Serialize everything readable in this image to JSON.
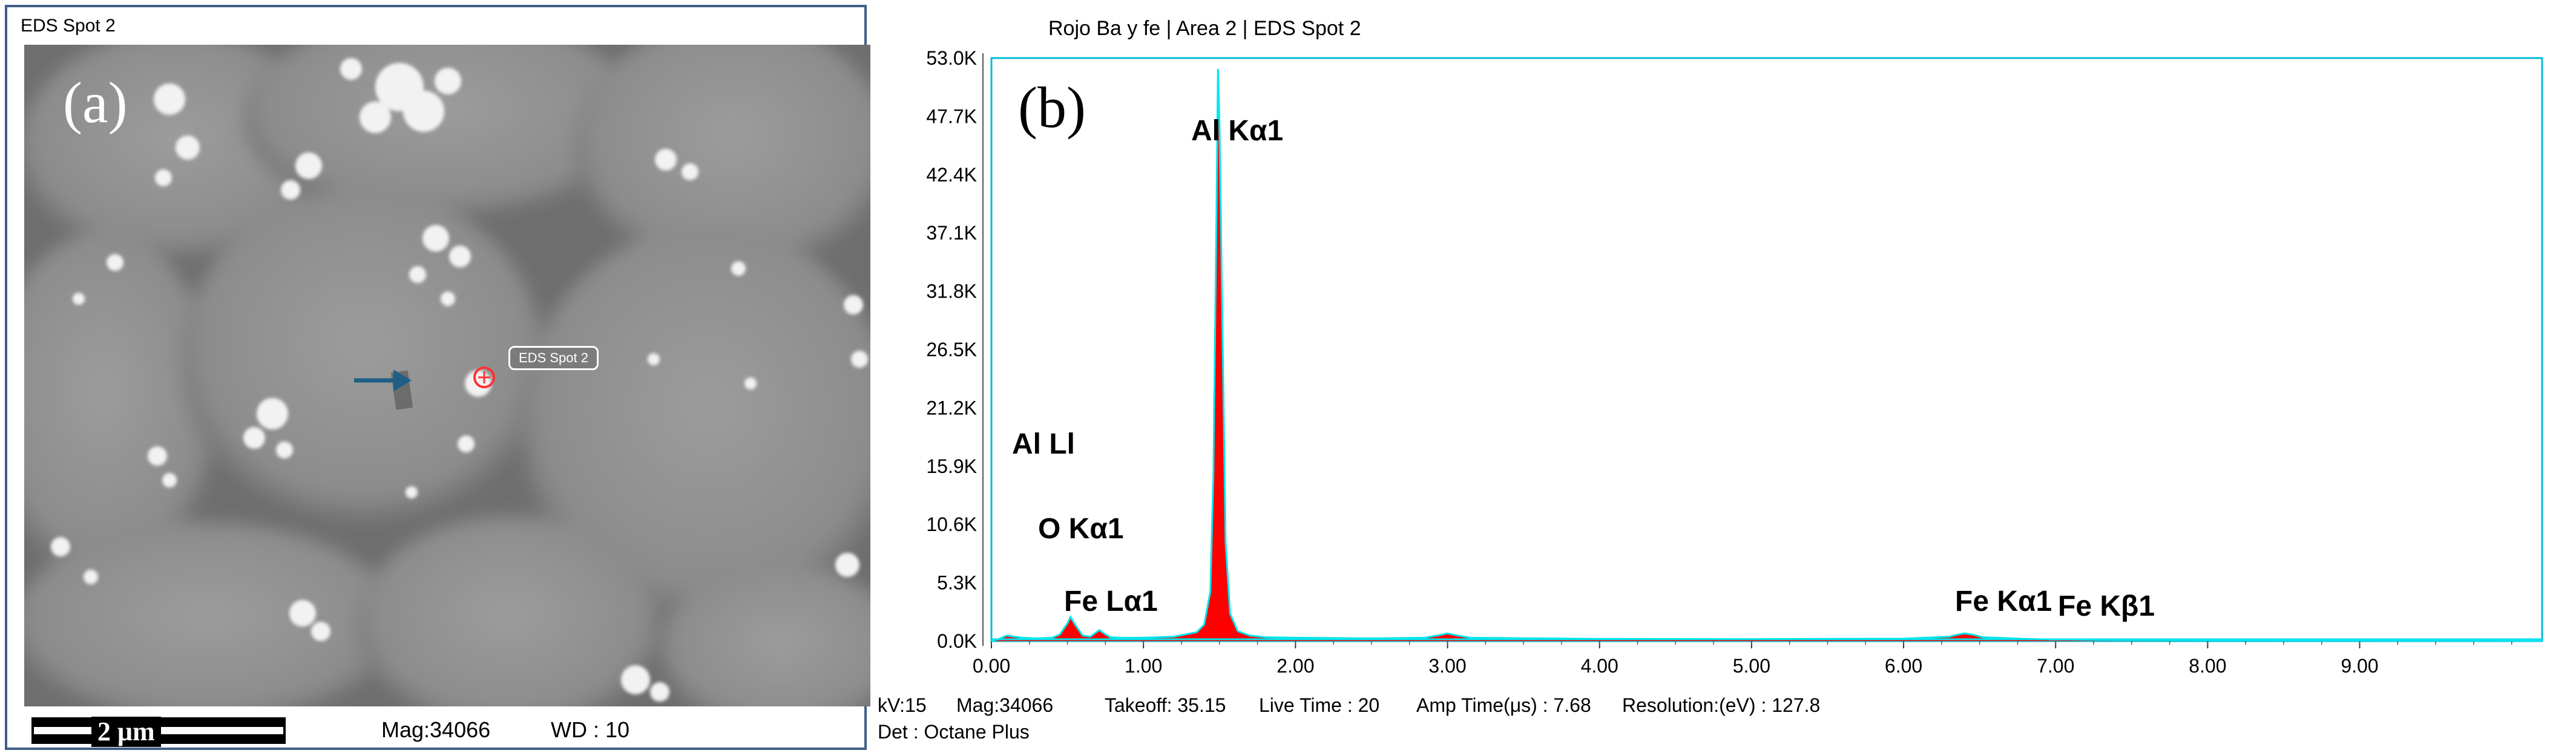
{
  "panel_a": {
    "title": "EDS Spot 2",
    "label": "(a)",
    "spot_tag": "EDS Spot 2",
    "scale": "2 μm",
    "mag": "Mag:34066",
    "wd": "WD : 10"
  },
  "chart_data": {
    "type": "line",
    "title": "Rojo Ba y fe | Area 2 | EDS Spot 2",
    "panel_label": "(b)",
    "xlabel": "",
    "ylabel": "",
    "xlim": [
      0,
      10.2
    ],
    "ylim": [
      0,
      53000
    ],
    "x_ticks": [
      "0.00",
      "1.00",
      "2.00",
      "3.00",
      "4.00",
      "5.00",
      "6.00",
      "7.00",
      "8.00",
      "9.00"
    ],
    "y_ticks": [
      "0.0K",
      "5.3K",
      "10.6K",
      "15.9K",
      "21.2K",
      "26.5K",
      "31.8K",
      "37.1K",
      "42.4K",
      "47.7K",
      "53.0K"
    ],
    "grid": false,
    "fill_color": "#ff0000",
    "line_color": "#00e5ee",
    "peaks": [
      {
        "label": "Al Ll",
        "x": 0.09,
        "y": 900
      },
      {
        "label": "O  Kα1",
        "x": 0.52,
        "y": 2200
      },
      {
        "label": "Fe Lα1",
        "x": 0.71,
        "y": 1000
      },
      {
        "label": "Al Kα1",
        "x": 1.49,
        "y": 52000
      },
      {
        "label": "Fe Kα1",
        "x": 6.4,
        "y": 700
      },
      {
        "label": "Fe Kβ1",
        "x": 7.06,
        "y": 150
      }
    ],
    "spectrum": {
      "x": [
        0.0,
        0.05,
        0.1,
        0.2,
        0.3,
        0.4,
        0.45,
        0.5,
        0.52,
        0.55,
        0.6,
        0.65,
        0.68,
        0.71,
        0.74,
        0.78,
        0.85,
        1.0,
        1.2,
        1.35,
        1.4,
        1.44,
        1.46,
        1.48,
        1.49,
        1.5,
        1.52,
        1.54,
        1.57,
        1.62,
        1.7,
        1.8,
        2.0,
        2.5,
        2.85,
        2.95,
        3.0,
        3.05,
        3.15,
        4.0,
        5.0,
        6.0,
        6.3,
        6.36,
        6.4,
        6.45,
        6.52,
        6.8,
        7.0,
        7.06,
        7.12,
        7.3,
        8.0,
        9.0,
        10.0,
        10.2
      ],
      "counts": [
        0,
        200,
        500,
        300,
        250,
        300,
        600,
        1600,
        2200,
        1500,
        500,
        400,
        700,
        1000,
        700,
        350,
        300,
        300,
        400,
        800,
        1500,
        4500,
        15000,
        38000,
        52000,
        47000,
        28000,
        9000,
        2500,
        900,
        500,
        350,
        300,
        250,
        300,
        550,
        700,
        550,
        300,
        200,
        180,
        220,
        400,
        600,
        700,
        600,
        350,
        200,
        130,
        150,
        130,
        100,
        80,
        60,
        40,
        30
      ]
    },
    "info": {
      "kv": "kV:15",
      "mag": "Mag:34066",
      "takeoff": "Takeoff: 35.15",
      "live_time": "Live Time : 20",
      "amp_time": "Amp Time(μs) : 7.68",
      "resolution": "Resolution:(eV) : 127.8",
      "det": "Det : Octane Plus"
    }
  }
}
